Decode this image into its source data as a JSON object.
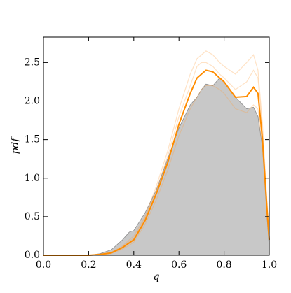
{
  "chart_data": {
    "type": "area-lines",
    "xlabel": "q",
    "ylabel": "pdf",
    "x": [
      0,
      0.1,
      0.2,
      0.25,
      0.3,
      0.35,
      0.38,
      0.4,
      0.45,
      0.5,
      0.55,
      0.6,
      0.65,
      0.68,
      0.7,
      0.72,
      0.75,
      0.78,
      0.8,
      0.85,
      0.9,
      0.93,
      0.95,
      0.97,
      0.99,
      1.0
    ],
    "area": {
      "color": "#c8c8c8",
      "edge": "#8c8c8c",
      "values": [
        0,
        0,
        0,
        0.02,
        0.07,
        0.2,
        0.3,
        0.32,
        0.55,
        0.85,
        1.25,
        1.65,
        1.95,
        2.05,
        2.15,
        2.22,
        2.2,
        2.3,
        2.25,
        2.05,
        1.9,
        1.92,
        1.8,
        1.4,
        0.5,
        0.1
      ]
    },
    "sample_lines": {
      "color": "#ffa040",
      "opacity": 0.3,
      "values": [
        [
          0,
          0,
          0,
          0.01,
          0.04,
          0.12,
          0.2,
          0.25,
          0.5,
          0.9,
          1.35,
          1.9,
          2.35,
          2.55,
          2.6,
          2.65,
          2.6,
          2.5,
          2.45,
          2.35,
          2.5,
          2.6,
          2.4,
          1.7,
          0.7,
          0.25
        ],
        [
          0,
          0,
          0,
          0.01,
          0.02,
          0.08,
          0.13,
          0.17,
          0.4,
          0.72,
          1.1,
          1.55,
          1.9,
          2.05,
          2.15,
          2.2,
          2.2,
          2.15,
          2.1,
          1.9,
          1.85,
          1.95,
          1.9,
          1.4,
          0.5,
          0.15
        ],
        [
          0,
          0,
          0,
          0.01,
          0.03,
          0.11,
          0.18,
          0.22,
          0.48,
          0.85,
          1.28,
          1.8,
          2.2,
          2.45,
          2.5,
          2.5,
          2.45,
          2.35,
          2.3,
          2.15,
          2.25,
          2.4,
          2.3,
          1.6,
          0.65,
          0.2
        ]
      ]
    },
    "mean_line": {
      "color": "#ff8c00",
      "values": [
        0,
        0,
        0,
        0.01,
        0.03,
        0.1,
        0.16,
        0.2,
        0.45,
        0.8,
        1.2,
        1.7,
        2.1,
        2.3,
        2.35,
        2.4,
        2.38,
        2.3,
        2.25,
        2.05,
        2.06,
        2.18,
        2.1,
        1.5,
        0.6,
        0.2
      ]
    },
    "xlim": [
      0,
      1
    ],
    "ylim": [
      0,
      2.83
    ],
    "xticks": [
      {
        "value": 0,
        "label": "0.0"
      },
      {
        "value": 0.2,
        "label": "0.2"
      },
      {
        "value": 0.4,
        "label": "0.4"
      },
      {
        "value": 0.6,
        "label": "0.6"
      },
      {
        "value": 0.8,
        "label": "0.8"
      },
      {
        "value": 1,
        "label": "1.0"
      }
    ],
    "yticks": [
      {
        "value": 0,
        "label": "0.0"
      },
      0.5,
      {
        "value": 1,
        "label": "1.0"
      },
      1.5,
      {
        "value": 2,
        "label": "2.0"
      },
      2.5
    ]
  }
}
